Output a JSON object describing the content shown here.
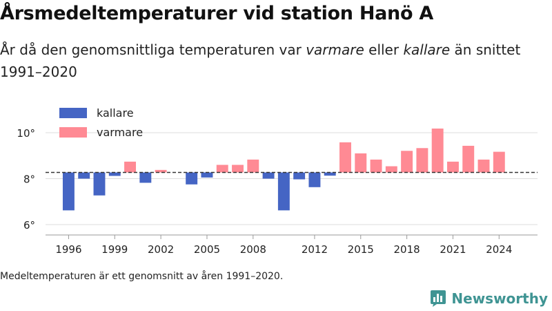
{
  "title": "Årsmedeltemperaturer vid station Hanö A",
  "subtitle": {
    "part1": "År då den genomsnittliga temperaturen var ",
    "warmer": "varmare",
    "part2": " eller ",
    "colder": "kallare",
    "part3": " än snittet 1991–2020"
  },
  "footnote": "Medeltemperaturen är ett genomsnitt av åren 1991–2020.",
  "brand": "Newsworthy",
  "colors": {
    "colder": "#4565c4",
    "warmer": "#ff8a94",
    "brand": "#3f9493"
  },
  "chart_data": {
    "type": "bar",
    "baseline": 8.27,
    "ylim": [
      5.5,
      10.8
    ],
    "yticks": [
      {
        "value": 6,
        "label": "6°"
      },
      {
        "value": 8,
        "label": "8°"
      },
      {
        "value": 10,
        "label": "10°"
      }
    ],
    "xticks": [
      1996,
      1999,
      2002,
      2005,
      2008,
      2012,
      2015,
      2018,
      2021,
      2024
    ],
    "xlim": [
      1994.5,
      2026.5
    ],
    "legend": [
      {
        "label": "kallare",
        "key": "colder"
      },
      {
        "label": "varmare",
        "key": "warmer"
      }
    ],
    "grid": true,
    "years": [
      1996,
      1997,
      1998,
      1999,
      2000,
      2001,
      2002,
      2004,
      2005,
      2006,
      2007,
      2008,
      2009,
      2010,
      2011,
      2012,
      2013,
      2014,
      2015,
      2016,
      2017,
      2018,
      2019,
      2020,
      2021,
      2022,
      2023,
      2024
    ],
    "values": [
      6.62,
      8.0,
      7.27,
      8.12,
      8.74,
      7.82,
      8.38,
      7.75,
      8.05,
      8.6,
      8.6,
      8.83,
      8.0,
      6.62,
      7.97,
      7.63,
      8.13,
      9.58,
      9.1,
      8.83,
      8.54,
      9.21,
      9.33,
      10.18,
      8.74,
      9.43,
      8.83,
      9.17
    ]
  }
}
